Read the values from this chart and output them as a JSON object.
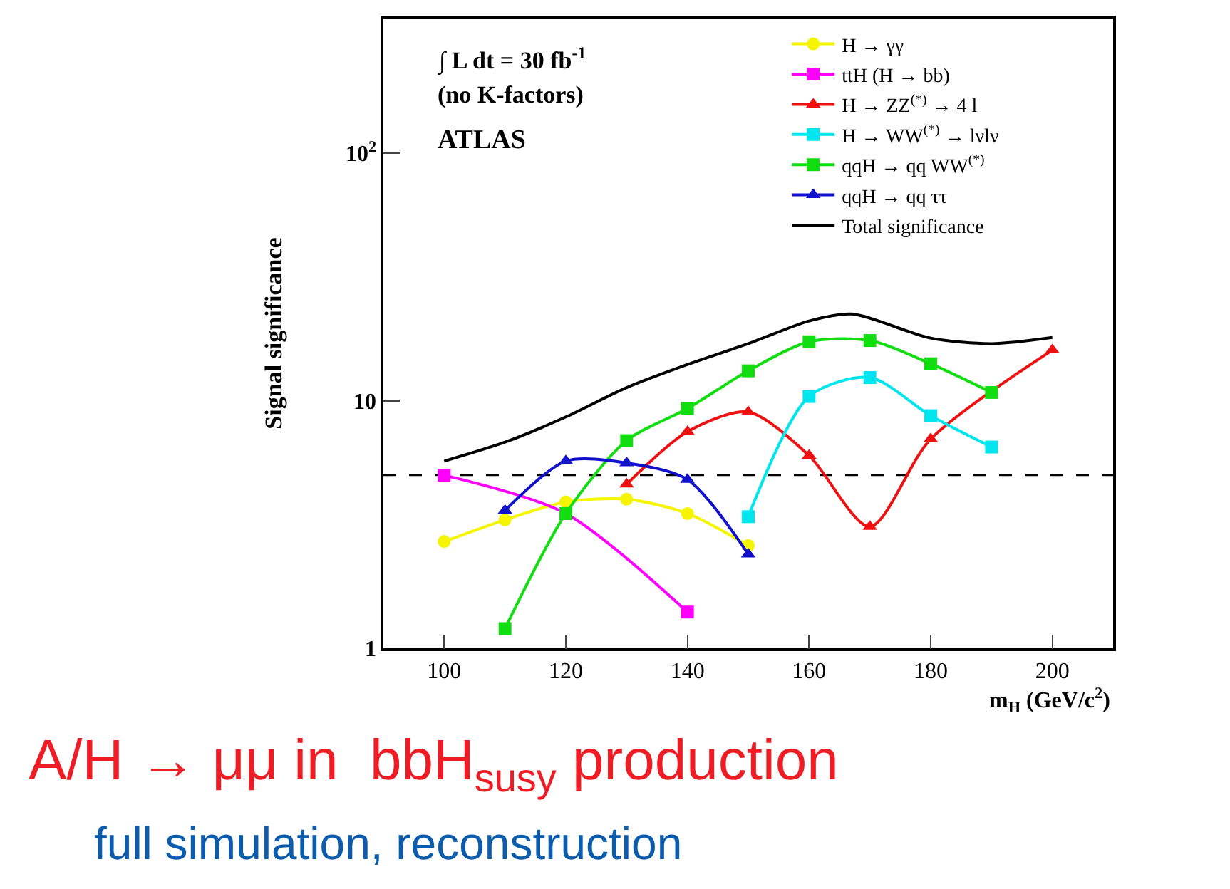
{
  "chart_data": {
    "type": "line",
    "xlabel": "m$_{H}$ (GeV/c$^{2}$)",
    "ylabel": "Signal significance",
    "xlim": [
      90,
      210
    ],
    "xticks": [
      100,
      120,
      140,
      160,
      180,
      200
    ],
    "ylim": [
      1,
      350
    ],
    "yticks": [
      1,
      10,
      {
        "value": 100,
        "label": "10$^{2}$"
      }
    ],
    "log": true,
    "grid": false,
    "legend": "top right",
    "series": [
      {
        "name": "H → γγ",
        "color": "#f5f500",
        "marker": "circle",
        "x": [
          100,
          110,
          120,
          130,
          140,
          150
        ],
        "values": [
          2.7,
          3.3,
          3.9,
          4.0,
          3.5,
          2.6
        ]
      },
      {
        "name": "ttH (H → bb)",
        "color": "#ff00ff",
        "marker": "square",
        "x": [
          100,
          120,
          140
        ],
        "values": [
          5.0,
          3.5,
          1.4
        ]
      },
      {
        "name": "H → ZZ$^{(*)}$ → 4 l",
        "color": "#ee1111",
        "marker": "triangle",
        "x": [
          130,
          140,
          150,
          160,
          170,
          180,
          200
        ],
        "values": [
          4.6,
          7.5,
          9.0,
          6.0,
          3.1,
          7.0,
          16
        ]
      },
      {
        "name": "H → WW$^{(*)}$ → lνlν",
        "color": "#00e5ee",
        "marker": "square",
        "x": [
          150,
          160,
          170,
          180,
          190
        ],
        "values": [
          3.4,
          10.4,
          12.4,
          8.7,
          6.5
        ]
      },
      {
        "name": "qqH → qq WW$^{(*)}$",
        "color": "#11dd11",
        "marker": "square",
        "x": [
          110,
          120,
          130,
          140,
          150,
          160,
          170,
          180,
          190
        ],
        "values": [
          1.2,
          3.5,
          6.9,
          9.3,
          13.2,
          17.3,
          17.5,
          14.1,
          10.8
        ]
      },
      {
        "name": "qqH → qq ττ",
        "color": "#1111cc",
        "marker": "triangle",
        "x": [
          110,
          120,
          130,
          140,
          150
        ],
        "values": [
          3.6,
          5.7,
          5.6,
          4.8,
          2.4
        ]
      },
      {
        "name": "Total significance",
        "color": "#000000",
        "marker": "none",
        "x": [
          100,
          110,
          120,
          130,
          140,
          150,
          160,
          167,
          180,
          190,
          200
        ],
        "values": [
          5.7,
          6.8,
          8.6,
          11.3,
          14,
          17,
          21,
          22.4,
          17.9,
          17,
          18
        ]
      }
    ],
    "ref_lines": [
      {
        "axis": "y",
        "value": 5,
        "color": "#000000",
        "line_style": "dashed"
      }
    ],
    "annotations": [
      "∫ L dt = 30 fb$^{-1}$",
      "(no K-factors)",
      "ATLAS",
      "A/H → μμ in  bbH$_{susy}$ production",
      "full simulation, reconstruction"
    ]
  }
}
